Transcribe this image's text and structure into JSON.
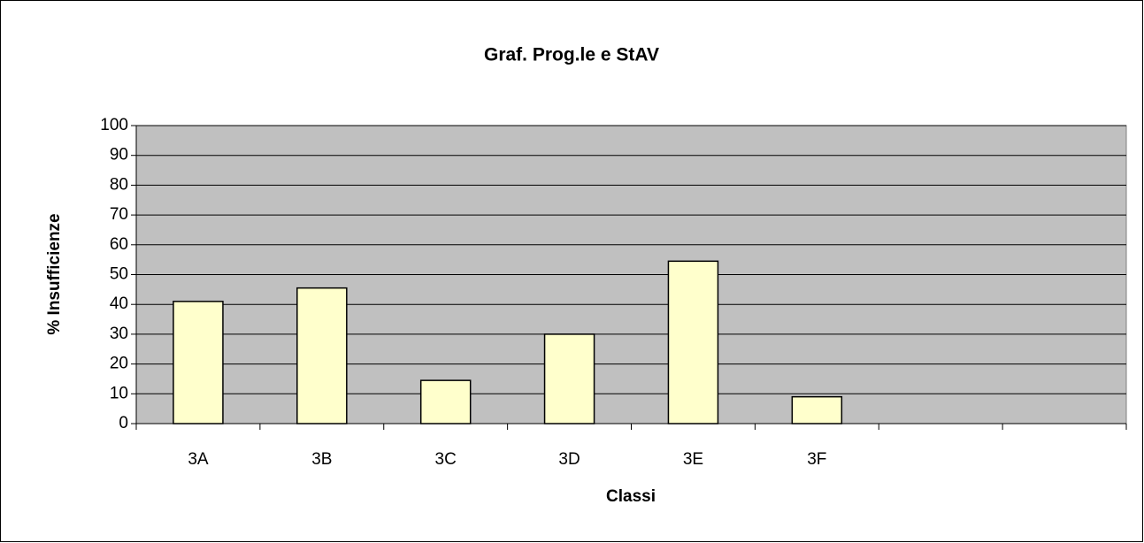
{
  "chart_data": {
    "type": "bar",
    "title": "Graf. Prog.le e StAV",
    "x_label": "Classi",
    "y_label": "% Insufficienze",
    "categories": [
      "3A",
      "3B",
      "3C",
      "3D",
      "3E",
      "3F",
      null,
      null
    ],
    "values": [
      41,
      45.5,
      14.5,
      30,
      54.5,
      9,
      null,
      null
    ],
    "color": "#ffffcc",
    "ylim": [
      0,
      100
    ],
    "yticks": [
      0,
      10,
      20,
      30,
      40,
      50,
      60,
      70,
      80,
      90,
      100
    ],
    "grid": true
  }
}
